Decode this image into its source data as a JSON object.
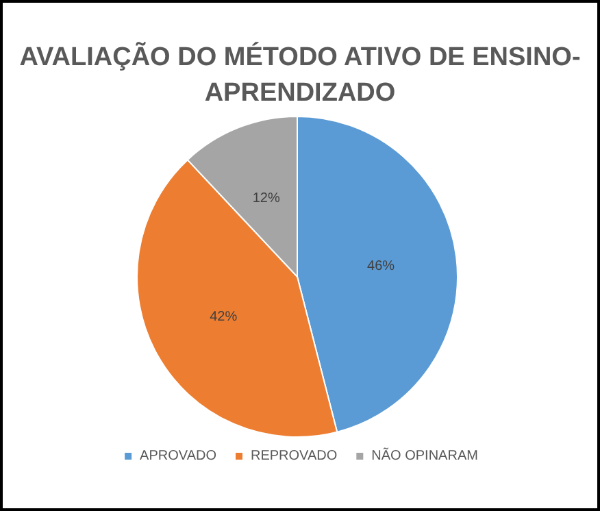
{
  "chart_data": {
    "type": "pie",
    "title": "AVALIAÇÃO DO MÉTODO ATIVO DE ENSINO-APRENDIZADO",
    "categories": [
      "APROVADO",
      "REPROVADO",
      "NÃO OPINARAM"
    ],
    "values": [
      46,
      42,
      12
    ],
    "colors": [
      "#5b9bd5",
      "#ed7d31",
      "#a5a5a5"
    ],
    "value_labels": [
      "46%",
      "42%",
      "12%"
    ],
    "legend": "bottom"
  }
}
